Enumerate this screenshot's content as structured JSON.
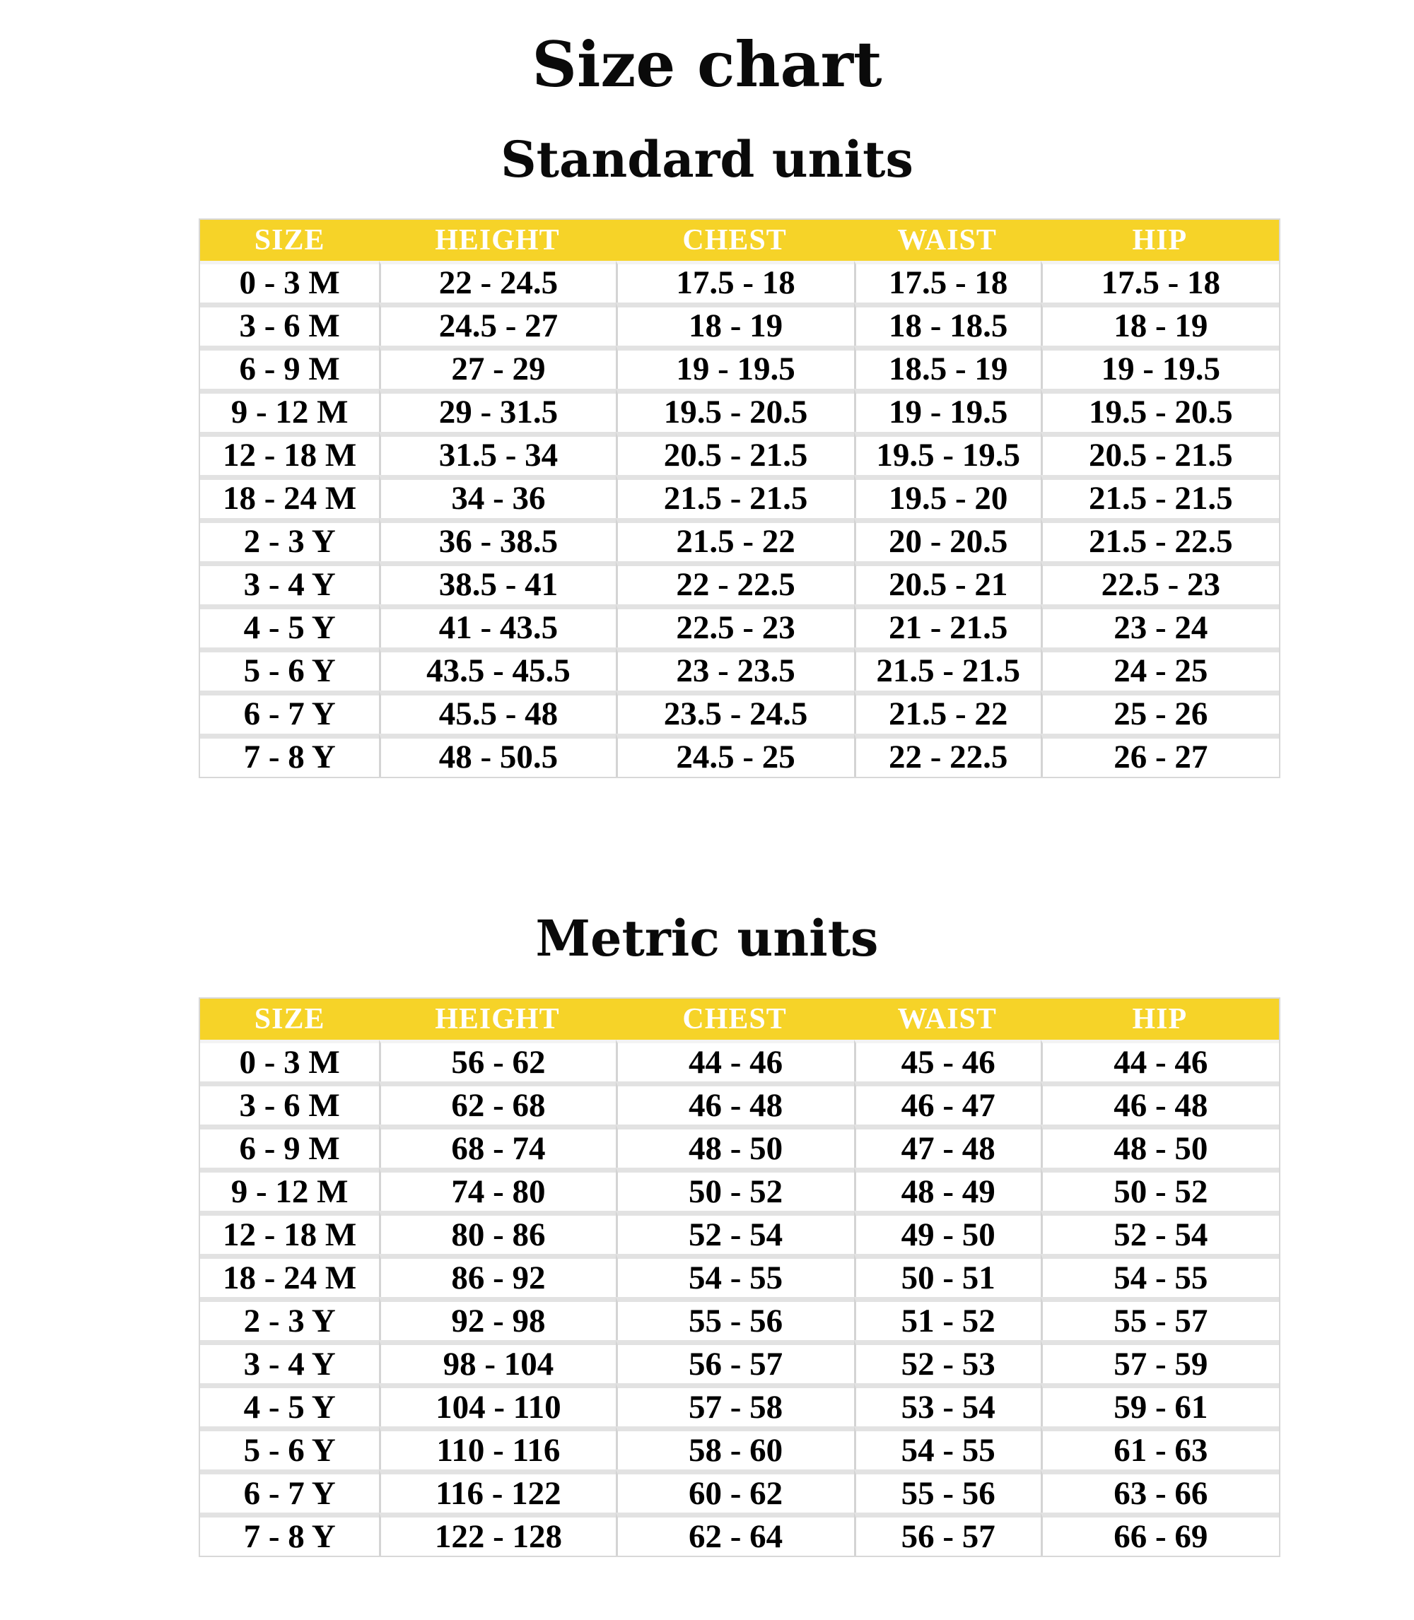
{
  "page_title": "Size chart",
  "colors": {
    "header_bg": "#F6D328",
    "header_text": "#FFFFFF",
    "cell_bg": "#FFFFFF",
    "cell_text": "#000000",
    "row_separator": "#E2E2E2",
    "column_separator": "#D4D4D4",
    "table_border": "#D8D8D8",
    "page_bg": "#FFFFFF"
  },
  "tables": [
    {
      "id": "standard",
      "title": "Standard units",
      "columns": [
        "SIZE",
        "HEIGHT",
        "CHEST",
        "WAIST",
        "HIP"
      ],
      "rows": [
        [
          "0 - 3 M",
          "22 - 24.5",
          "17.5 - 18",
          "17.5 - 18",
          "17.5 - 18"
        ],
        [
          "3 - 6 M",
          "24.5 - 27",
          "18 - 19",
          "18 - 18.5",
          "18 - 19"
        ],
        [
          "6 - 9 M",
          "27 - 29",
          "19 - 19.5",
          "18.5 - 19",
          "19 - 19.5"
        ],
        [
          "9 - 12 M",
          "29 - 31.5",
          "19.5 - 20.5",
          "19 - 19.5",
          "19.5 - 20.5"
        ],
        [
          "12 - 18 M",
          "31.5 - 34",
          "20.5 - 21.5",
          "19.5 - 19.5",
          "20.5 - 21.5"
        ],
        [
          "18 - 24 M",
          "34 - 36",
          "21.5 - 21.5",
          "19.5 - 20",
          "21.5 - 21.5"
        ],
        [
          "2 - 3 Y",
          "36 - 38.5",
          "21.5 - 22",
          "20 - 20.5",
          "21.5 - 22.5"
        ],
        [
          "3 - 4 Y",
          "38.5 - 41",
          "22 - 22.5",
          "20.5 - 21",
          "22.5 - 23"
        ],
        [
          "4 - 5 Y",
          "41 - 43.5",
          "22.5 - 23",
          "21 - 21.5",
          "23 - 24"
        ],
        [
          "5 - 6 Y",
          "43.5 - 45.5",
          "23 - 23.5",
          "21.5 - 21.5",
          "24 - 25"
        ],
        [
          "6 - 7 Y",
          "45.5 - 48",
          "23.5 - 24.5",
          "21.5 - 22",
          "25 - 26"
        ],
        [
          "7 - 8 Y",
          "48 - 50.5",
          "24.5 - 25",
          "22 - 22.5",
          "26 - 27"
        ]
      ]
    },
    {
      "id": "metric",
      "title": "Metric units",
      "columns": [
        "SIZE",
        "HEIGHT",
        "CHEST",
        "WAIST",
        "HIP"
      ],
      "rows": [
        [
          "0 - 3 M",
          "56 - 62",
          "44 - 46",
          "45 - 46",
          "44 - 46"
        ],
        [
          "3 - 6 M",
          "62 - 68",
          "46 - 48",
          "46 - 47",
          "46 - 48"
        ],
        [
          "6 - 9 M",
          "68 - 74",
          "48 - 50",
          "47 - 48",
          "48 - 50"
        ],
        [
          "9 - 12 M",
          "74 - 80",
          "50 - 52",
          "48 - 49",
          "50 - 52"
        ],
        [
          "12 - 18 M",
          "80 - 86",
          "52 - 54",
          "49 - 50",
          "52 - 54"
        ],
        [
          "18 - 24 M",
          "86 - 92",
          "54 - 55",
          "50 - 51",
          "54 - 55"
        ],
        [
          "2 - 3 Y",
          "92 - 98",
          "55 - 56",
          "51 - 52",
          "55 - 57"
        ],
        [
          "3 - 4 Y",
          "98 - 104",
          "56 - 57",
          "52 - 53",
          "57 - 59"
        ],
        [
          "4 - 5 Y",
          "104 - 110",
          "57 - 58",
          "53 - 54",
          "59 - 61"
        ],
        [
          "5 - 6 Y",
          "110 - 116",
          "58 - 60",
          "54 - 55",
          "61 - 63"
        ],
        [
          "6 - 7 Y",
          "116 - 122",
          "60 - 62",
          "55 - 56",
          "63 - 66"
        ],
        [
          "7 - 8 Y",
          "122 - 128",
          "62 - 64",
          "56 - 57",
          "66 - 69"
        ]
      ]
    }
  ]
}
